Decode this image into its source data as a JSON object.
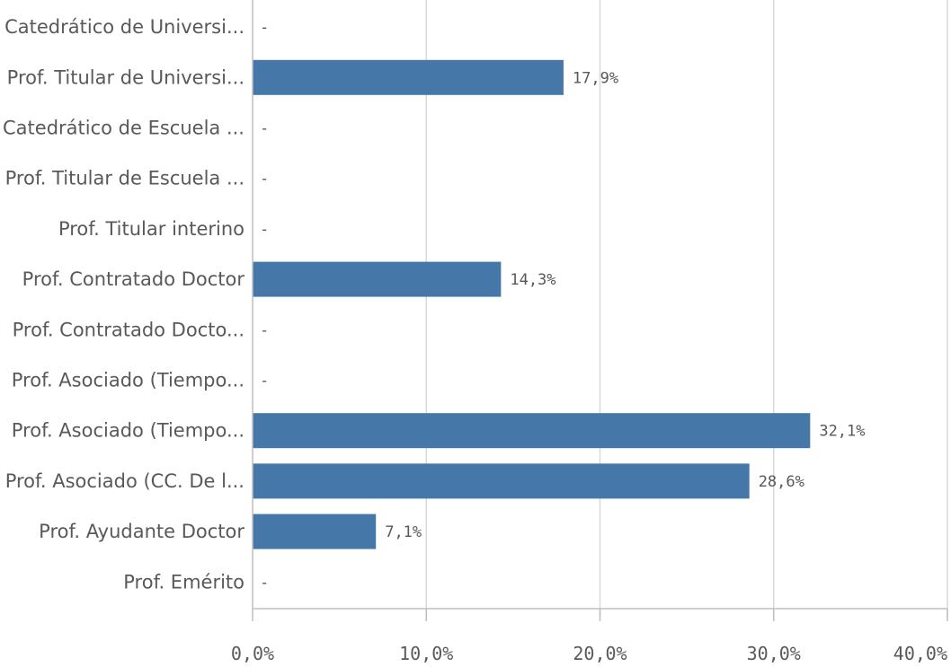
{
  "chart_data": {
    "type": "bar",
    "orientation": "horizontal",
    "categories": [
      "Catedrático de Universi...",
      "Prof. Titular de Universi...",
      "Catedrático de Escuela ...",
      "Prof. Titular de Escuela ...",
      "Prof. Titular interino",
      "Prof. Contratado Doctor",
      "Prof. Contratado Docto...",
      "Prof. Asociado (Tiempo...",
      "Prof. Asociado (Tiempo...",
      "Prof. Asociado (CC. De l...",
      "Prof. Ayudante Doctor",
      "Prof. Emérito"
    ],
    "values": [
      null,
      17.9,
      null,
      null,
      null,
      14.3,
      null,
      null,
      32.1,
      28.6,
      7.1,
      null
    ],
    "data_labels": [
      "-",
      "17,9%",
      "-",
      "-",
      "-",
      "14,3%",
      "-",
      "-",
      "32,1%",
      "28,6%",
      "7,1%",
      "-"
    ],
    "xlim": [
      0,
      40
    ],
    "xticks": [
      0,
      10,
      20,
      30,
      40
    ],
    "xtick_labels": [
      "0,0%",
      "10,0%",
      "20,0%",
      "30,0%",
      "40,0%"
    ],
    "grid": true,
    "bar_color": "#4577a8",
    "grid_color": "#d9d9d9",
    "text_color": "#595959"
  }
}
